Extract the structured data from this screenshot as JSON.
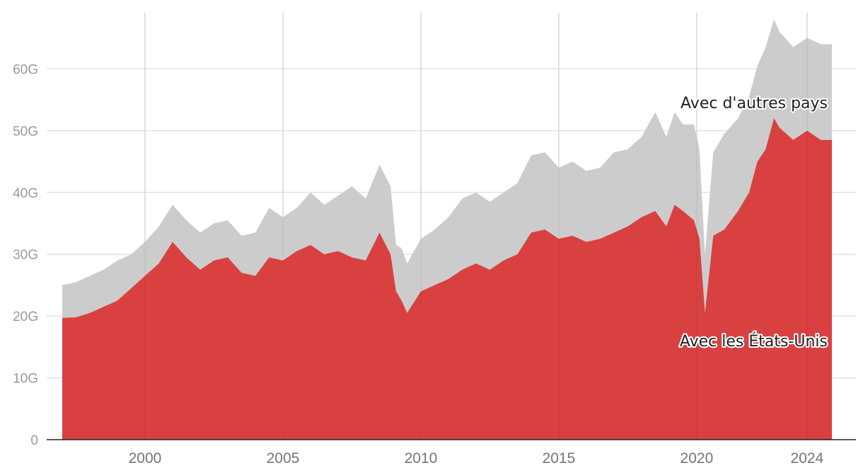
{
  "chart_data": {
    "type": "area",
    "title": "",
    "xlabel": "",
    "ylabel": "",
    "ylim": [
      0,
      70
    ],
    "xlim": [
      1997.0,
      2024.9
    ],
    "grid": true,
    "y_ticks": [
      0,
      10,
      20,
      30,
      40,
      50,
      60
    ],
    "y_tick_labels": [
      "0",
      "10G",
      "20G",
      "30G",
      "40G",
      "50G",
      "60G"
    ],
    "x_ticks": [
      2000,
      2005,
      2010,
      2015,
      2020,
      2024
    ],
    "x_tick_labels": [
      "2000",
      "2005",
      "2010",
      "2015",
      "2020",
      "2024"
    ],
    "annotations": {
      "other_countries": "Avec d'autres pays",
      "united_states": "Avec les États-Unis"
    },
    "colors": {
      "united_states": "#d94141",
      "other_countries": "#cccccc",
      "grid": "#e3e3e3",
      "axis": "#222222"
    },
    "series": [
      {
        "key": "united_states",
        "stack": "bottom",
        "points": [
          [
            1997.0,
            19.7
          ],
          [
            1997.5,
            19.8
          ],
          [
            1998.0,
            20.5
          ],
          [
            1998.5,
            21.5
          ],
          [
            1999.0,
            22.5
          ],
          [
            1999.5,
            24.5
          ],
          [
            2000.0,
            26.5
          ],
          [
            2000.5,
            28.5
          ],
          [
            2001.0,
            32.0
          ],
          [
            2001.5,
            29.5
          ],
          [
            2002.0,
            27.5
          ],
          [
            2002.5,
            29.0
          ],
          [
            2003.0,
            29.5
          ],
          [
            2003.5,
            27.0
          ],
          [
            2004.0,
            26.5
          ],
          [
            2004.5,
            29.5
          ],
          [
            2005.0,
            29.0
          ],
          [
            2005.5,
            30.5
          ],
          [
            2006.0,
            31.5
          ],
          [
            2006.5,
            30.0
          ],
          [
            2007.0,
            30.5
          ],
          [
            2007.5,
            29.5
          ],
          [
            2008.0,
            29.0
          ],
          [
            2008.5,
            33.5
          ],
          [
            2008.9,
            30.0
          ],
          [
            2009.1,
            24.0
          ],
          [
            2009.3,
            22.5
          ],
          [
            2009.5,
            20.5
          ],
          [
            2010.0,
            24.0
          ],
          [
            2010.5,
            25.0
          ],
          [
            2011.0,
            26.0
          ],
          [
            2011.5,
            27.5
          ],
          [
            2012.0,
            28.5
          ],
          [
            2012.5,
            27.5
          ],
          [
            2013.0,
            29.0
          ],
          [
            2013.5,
            30.0
          ],
          [
            2014.0,
            33.5
          ],
          [
            2014.5,
            34.0
          ],
          [
            2015.0,
            32.5
          ],
          [
            2015.5,
            33.0
          ],
          [
            2016.0,
            32.0
          ],
          [
            2016.5,
            32.5
          ],
          [
            2017.0,
            33.5
          ],
          [
            2017.5,
            34.5
          ],
          [
            2018.0,
            36.0
          ],
          [
            2018.5,
            37.0
          ],
          [
            2018.9,
            34.5
          ],
          [
            2019.2,
            38.0
          ],
          [
            2019.5,
            37.0
          ],
          [
            2019.9,
            35.5
          ],
          [
            2020.1,
            32.5
          ],
          [
            2020.3,
            20.5
          ],
          [
            2020.6,
            33.0
          ],
          [
            2021.0,
            34.0
          ],
          [
            2021.5,
            37.0
          ],
          [
            2021.9,
            40.0
          ],
          [
            2022.2,
            45.0
          ],
          [
            2022.5,
            47.0
          ],
          [
            2022.8,
            52.0
          ],
          [
            2023.0,
            50.5
          ],
          [
            2023.5,
            48.5
          ],
          [
            2024.0,
            50.0
          ],
          [
            2024.5,
            48.5
          ],
          [
            2024.9,
            48.5
          ]
        ]
      },
      {
        "key": "other_countries",
        "stack": "total",
        "points": [
          [
            1997.0,
            25.0
          ],
          [
            1997.5,
            25.5
          ],
          [
            1998.0,
            26.5
          ],
          [
            1998.5,
            27.5
          ],
          [
            1999.0,
            29.0
          ],
          [
            1999.5,
            30.0
          ],
          [
            2000.0,
            32.0
          ],
          [
            2000.5,
            34.5
          ],
          [
            2001.0,
            38.0
          ],
          [
            2001.5,
            35.5
          ],
          [
            2002.0,
            33.5
          ],
          [
            2002.5,
            35.0
          ],
          [
            2003.0,
            35.5
          ],
          [
            2003.5,
            33.0
          ],
          [
            2004.0,
            33.5
          ],
          [
            2004.5,
            37.5
          ],
          [
            2005.0,
            36.0
          ],
          [
            2005.5,
            37.5
          ],
          [
            2006.0,
            40.0
          ],
          [
            2006.5,
            38.0
          ],
          [
            2007.0,
            39.5
          ],
          [
            2007.5,
            41.0
          ],
          [
            2008.0,
            39.0
          ],
          [
            2008.5,
            44.5
          ],
          [
            2008.9,
            41.0
          ],
          [
            2009.1,
            31.5
          ],
          [
            2009.3,
            31.0
          ],
          [
            2009.5,
            28.5
          ],
          [
            2010.0,
            32.5
          ],
          [
            2010.5,
            34.0
          ],
          [
            2011.0,
            36.0
          ],
          [
            2011.5,
            39.0
          ],
          [
            2012.0,
            40.0
          ],
          [
            2012.5,
            38.5
          ],
          [
            2013.0,
            40.0
          ],
          [
            2013.5,
            41.5
          ],
          [
            2014.0,
            46.0
          ],
          [
            2014.5,
            46.5
          ],
          [
            2015.0,
            44.0
          ],
          [
            2015.5,
            45.0
          ],
          [
            2016.0,
            43.5
          ],
          [
            2016.5,
            44.0
          ],
          [
            2017.0,
            46.5
          ],
          [
            2017.5,
            47.0
          ],
          [
            2018.0,
            49.0
          ],
          [
            2018.5,
            53.0
          ],
          [
            2018.9,
            49.0
          ],
          [
            2019.2,
            53.0
          ],
          [
            2019.5,
            51.0
          ],
          [
            2019.9,
            51.0
          ],
          [
            2020.1,
            47.0
          ],
          [
            2020.3,
            30.0
          ],
          [
            2020.6,
            46.5
          ],
          [
            2021.0,
            49.5
          ],
          [
            2021.5,
            52.0
          ],
          [
            2021.9,
            55.5
          ],
          [
            2022.2,
            60.5
          ],
          [
            2022.5,
            63.5
          ],
          [
            2022.8,
            68.0
          ],
          [
            2023.0,
            66.0
          ],
          [
            2023.5,
            63.5
          ],
          [
            2024.0,
            65.0
          ],
          [
            2024.5,
            64.0
          ],
          [
            2024.9,
            64.0
          ]
        ]
      }
    ]
  }
}
